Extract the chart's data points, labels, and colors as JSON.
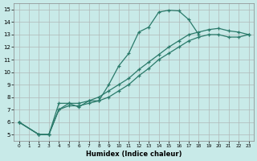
{
  "xlabel": "Humidex (Indice chaleur)",
  "background_color": "#c8eae8",
  "line_color": "#2a7a6a",
  "xlim": [
    -0.5,
    23.5
  ],
  "ylim": [
    4.5,
    15.5
  ],
  "xticks": [
    0,
    1,
    2,
    3,
    4,
    5,
    6,
    7,
    8,
    9,
    10,
    11,
    12,
    13,
    14,
    15,
    16,
    17,
    18,
    19,
    20,
    21,
    22,
    23
  ],
  "yticks": [
    5,
    6,
    7,
    8,
    9,
    10,
    11,
    12,
    13,
    14,
    15
  ],
  "series": [
    {
      "x": [
        0,
        2,
        3,
        4,
        5,
        6,
        7,
        8,
        9,
        10,
        11,
        12,
        13,
        14,
        15,
        16,
        17,
        18
      ],
      "y": [
        6.0,
        5.0,
        5.0,
        7.5,
        7.5,
        7.2,
        7.7,
        7.7,
        9.0,
        10.5,
        11.5,
        13.2,
        13.6,
        14.8,
        14.95,
        14.9,
        14.2,
        13.0
      ]
    },
    {
      "x": [
        0,
        2,
        3,
        4,
        5,
        6,
        7,
        8,
        9,
        10,
        11,
        12,
        13,
        14,
        15,
        16,
        17,
        18,
        19,
        20,
        21,
        22,
        23
      ],
      "y": [
        6.0,
        5.0,
        5.0,
        7.0,
        7.5,
        7.5,
        7.7,
        8.0,
        8.5,
        9.0,
        9.5,
        10.2,
        10.8,
        11.4,
        12.0,
        12.5,
        13.0,
        13.2,
        13.4,
        13.5,
        13.3,
        13.2,
        13.0
      ]
    },
    {
      "x": [
        0,
        2,
        3,
        4,
        5,
        6,
        7,
        8,
        9,
        10,
        11,
        12,
        13,
        14,
        15,
        16,
        17,
        18,
        19,
        20,
        21,
        22,
        23
      ],
      "y": [
        6.0,
        5.0,
        5.0,
        7.0,
        7.3,
        7.3,
        7.5,
        7.7,
        8.0,
        8.5,
        9.0,
        9.7,
        10.3,
        11.0,
        11.5,
        12.0,
        12.5,
        12.8,
        13.0,
        13.0,
        12.8,
        12.8,
        13.0
      ]
    }
  ]
}
